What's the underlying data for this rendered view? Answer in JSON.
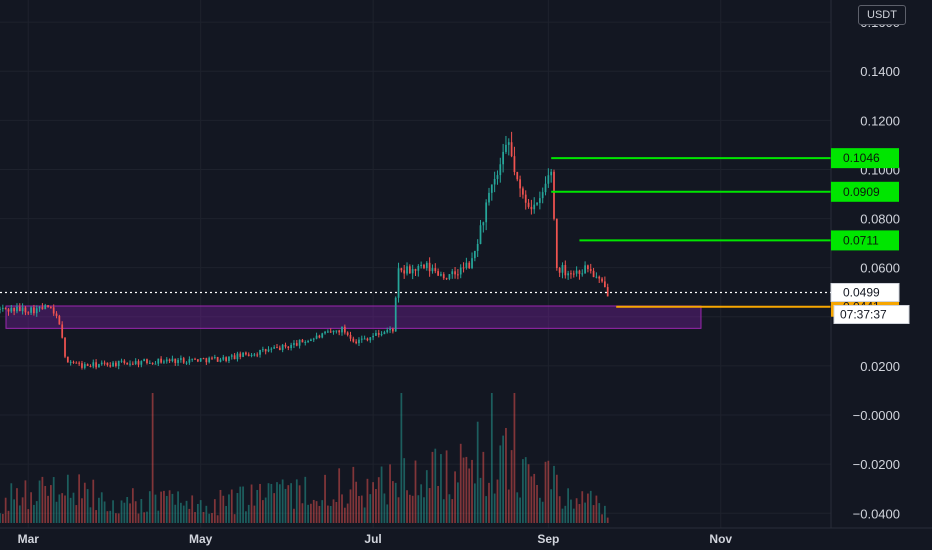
{
  "header": {
    "currency": "USDT"
  },
  "colors": {
    "background": "#131722",
    "grid": "#1e222d",
    "up": "#26a69a",
    "down": "#ef5350",
    "level_line": "#00e600",
    "support_line": "#f7a600",
    "zone_fill": "#7b1fa2",
    "zone_border": "#9c27b0",
    "price_line": "#ffffff"
  },
  "chart_data": {
    "type": "candlestick",
    "y_axis": {
      "range": [
        -0.046,
        0.169
      ],
      "ticks": [
        -0.04,
        -0.02,
        0.0,
        0.02,
        0.04,
        0.06,
        0.08,
        0.1,
        0.12,
        0.14,
        0.16
      ],
      "tick_labels": [
        "−0.0400",
        "−0.0200",
        "−0.0000",
        "0.0200",
        "",
        "0.0600",
        "0.0800",
        "0.1000",
        "0.1200",
        "0.1400",
        "0.1600"
      ]
    },
    "x_axis": {
      "range": [
        "2024-02-20",
        "2024-12-10"
      ],
      "ticks": [
        "2024-03-01",
        "2024-05-01",
        "2024-07-01",
        "2024-09-01",
        "2024-11-01"
      ],
      "tick_labels": [
        "Mar",
        "May",
        "Jul",
        "Sep",
        "Nov"
      ]
    },
    "ohlc_anchors": [
      [
        "2024-02-20",
        0.043
      ],
      [
        "2024-03-05",
        0.043
      ],
      [
        "2024-03-08",
        0.044
      ],
      [
        "2024-03-12",
        0.038
      ],
      [
        "2024-03-14",
        0.023
      ],
      [
        "2024-03-20",
        0.02
      ],
      [
        "2024-04-15",
        0.022
      ],
      [
        "2024-05-10",
        0.023
      ],
      [
        "2024-06-01",
        0.028
      ],
      [
        "2024-06-20",
        0.035
      ],
      [
        "2024-06-25",
        0.03
      ],
      [
        "2024-07-08",
        0.035
      ],
      [
        "2024-07-10",
        0.058
      ],
      [
        "2024-07-20",
        0.06
      ],
      [
        "2024-07-28",
        0.056
      ],
      [
        "2024-08-05",
        0.062
      ],
      [
        "2024-08-10",
        0.085
      ],
      [
        "2024-08-18",
        0.11
      ],
      [
        "2024-08-22",
        0.09
      ],
      [
        "2024-08-28",
        0.084
      ],
      [
        "2024-09-02",
        0.1
      ],
      [
        "2024-09-04",
        0.06
      ],
      [
        "2024-09-10",
        0.058
      ],
      [
        "2024-09-15",
        0.06
      ],
      [
        "2024-09-22",
        0.05
      ]
    ],
    "candle_interval_days": 1,
    "volume_anchors": [
      [
        "2024-02-20",
        0.25
      ],
      [
        "2024-03-14",
        0.35
      ],
      [
        "2024-05-01",
        0.2
      ],
      [
        "2024-07-10",
        0.45
      ],
      [
        "2024-08-15",
        0.75
      ],
      [
        "2024-09-02",
        0.4
      ],
      [
        "2024-09-22",
        0.15
      ]
    ],
    "volume_spikes": [
      [
        "2024-04-14",
        1.0
      ],
      [
        "2024-07-11",
        1.0
      ],
      [
        "2024-08-12",
        1.0
      ],
      [
        "2024-08-20",
        1.0
      ]
    ],
    "horizontal_levels": [
      {
        "start": "2024-09-02",
        "price": 0.1046,
        "label": "0.1046",
        "color": "#00e600"
      },
      {
        "start": "2024-09-02",
        "price": 0.0909,
        "label": "0.0909",
        "color": "#00e600"
      },
      {
        "start": "2024-09-12",
        "price": 0.0711,
        "label": "0.0711",
        "color": "#00e600"
      },
      {
        "start": "2024-09-25",
        "price": 0.0441,
        "label": "0.0441",
        "color": "#f7a600"
      }
    ],
    "zone": {
      "start": "2024-02-20",
      "end": "2024-10-25",
      "top": 0.0444,
      "bottom": 0.0353
    },
    "last_price": {
      "value": 0.0499,
      "label": "0.0499"
    },
    "countdown": "07:37:37"
  }
}
